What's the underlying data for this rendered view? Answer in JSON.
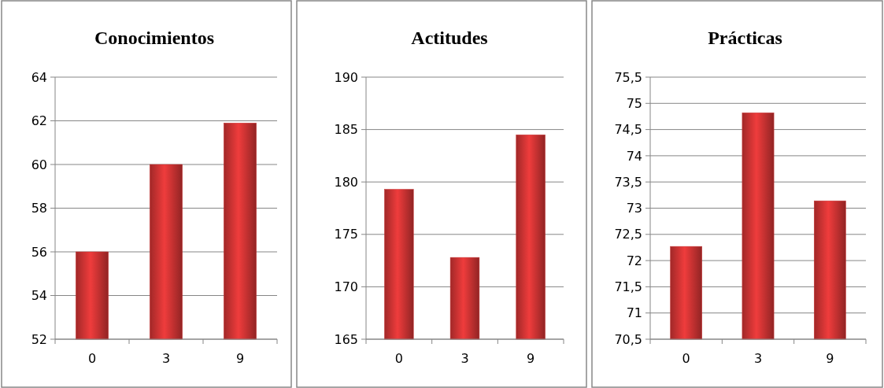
{
  "chart_data": [
    {
      "type": "bar",
      "title": "Conocimientos",
      "categories": [
        "0",
        "3",
        "9"
      ],
      "values": [
        56,
        60,
        61.9
      ],
      "color": "#c83232",
      "ylim": [
        52,
        64
      ],
      "yticks": [
        52,
        54,
        56,
        58,
        60,
        62,
        64
      ],
      "grid": "y"
    },
    {
      "type": "bar",
      "title": "Actitudes",
      "categories": [
        "0",
        "3",
        "9"
      ],
      "values": [
        179.3,
        172.8,
        184.5
      ],
      "color": "#c83232",
      "ylim": [
        165,
        190
      ],
      "yticks": [
        165,
        170,
        175,
        180,
        185,
        190
      ],
      "grid": "y"
    },
    {
      "type": "bar",
      "title": "Prácticas",
      "categories": [
        "0",
        "3",
        "9"
      ],
      "values": [
        72.27,
        74.82,
        73.14
      ],
      "color": "#c83232",
      "ylim": [
        70.5,
        75.5
      ],
      "yticks": [
        {
          "value": 70.5,
          "label": "70,5"
        },
        71,
        {
          "value": 71.5,
          "label": "71,5"
        },
        72,
        {
          "value": 72.5,
          "label": "72,5"
        },
        73,
        {
          "value": 73.5,
          "label": "73,5"
        },
        74,
        {
          "value": 74.5,
          "label": "74,5"
        },
        75,
        {
          "value": 75.5,
          "label": "75,5"
        }
      ],
      "grid": "y"
    }
  ]
}
